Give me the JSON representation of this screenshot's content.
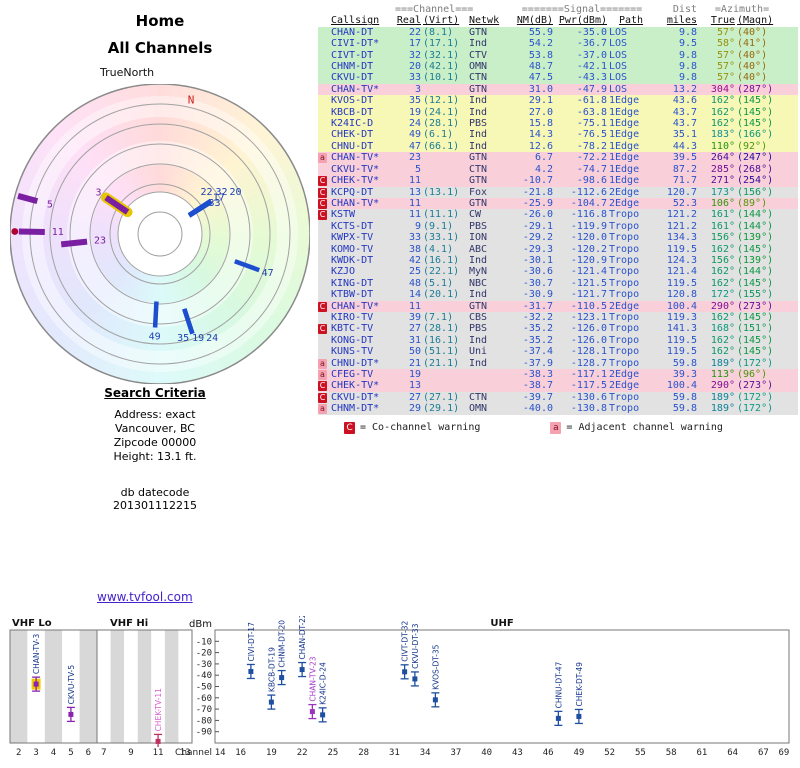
{
  "search": {
    "title": "Search Criteria",
    "lines": [
      "Address: exact",
      "Vancouver, BC",
      "Zipcode 00000",
      "Height: 13.1 ft."
    ],
    "lines2": [
      "db datecode",
      "201301112215"
    ]
  },
  "link": "www.tvfool.com",
  "legend": {
    "c_icon": "C",
    "c_text": "= Co-channel warning",
    "a_icon": "a",
    "a_text": "= Adjacent channel warning"
  },
  "table": {
    "group_headers": {
      "channel": "===Channel===",
      "signal": "=======Signal=======",
      "dist": "Dist",
      "azimuth": "=Azimuth="
    },
    "col_headers": [
      "Callsign",
      "Real",
      "(Virt)",
      "Netwk",
      "NM(dB)",
      "Pwr(dBm)",
      "Path",
      "miles",
      "True",
      "(Magn)"
    ],
    "band_colors": {
      "green": "#c9efc9",
      "yellow": "#f7f7b6",
      "pink": "#f9d0da",
      "gray": "#e2e2e2"
    },
    "rows": [
      {
        "callsign": "CHAN-DT",
        "real": "22",
        "virt": "(8.1)",
        "netwk": "GTN",
        "nm": "55.9",
        "pwr": "-35.0",
        "path": "LOS",
        "miles": "9.8",
        "az_true": 57,
        "az_magn": 40,
        "band": "green",
        "warn": ""
      },
      {
        "callsign": "CIVI-DT*",
        "real": "17",
        "virt": "(17.1)",
        "netwk": "Ind",
        "nm": "54.2",
        "pwr": "-36.7",
        "path": "LOS",
        "miles": "9.5",
        "az_true": 58,
        "az_magn": 41,
        "band": "green",
        "warn": ""
      },
      {
        "callsign": "CIVT-DT",
        "real": "32",
        "virt": "(32.1)",
        "netwk": "CTV",
        "nm": "53.8",
        "pwr": "-37.0",
        "path": "LOS",
        "miles": "9.8",
        "az_true": 57,
        "az_magn": 40,
        "band": "green",
        "warn": ""
      },
      {
        "callsign": "CHNM-DT",
        "real": "20",
        "virt": "(42.1)",
        "netwk": "OMN",
        "nm": "48.7",
        "pwr": "-42.1",
        "path": "LOS",
        "miles": "9.8",
        "az_true": 57,
        "az_magn": 40,
        "band": "green",
        "warn": ""
      },
      {
        "callsign": "CKVU-DT",
        "real": "33",
        "virt": "(10.1)",
        "netwk": "CTN",
        "nm": "47.5",
        "pwr": "-43.3",
        "path": "LOS",
        "miles": "9.8",
        "az_true": 57,
        "az_magn": 40,
        "band": "green",
        "warn": ""
      },
      {
        "callsign": "CHAN-TV*",
        "real": "3",
        "virt": "",
        "netwk": "GTN",
        "nm": "31.0",
        "pwr": "-47.9",
        "path": "LOS",
        "miles": "13.2",
        "az_true": 304,
        "az_magn": 287,
        "band": "pink",
        "warn": ""
      },
      {
        "callsign": "KVOS-DT",
        "real": "35",
        "virt": "(12.1)",
        "netwk": "Ind",
        "nm": "29.1",
        "pwr": "-61.8",
        "path": "1Edge",
        "miles": "43.6",
        "az_true": 162,
        "az_magn": 145,
        "band": "yellow",
        "warn": ""
      },
      {
        "callsign": "KBCB-DT",
        "real": "19",
        "virt": "(24.1)",
        "netwk": "Ind",
        "nm": "27.0",
        "pwr": "-63.8",
        "path": "1Edge",
        "miles": "43.7",
        "az_true": 162,
        "az_magn": 145,
        "band": "yellow",
        "warn": ""
      },
      {
        "callsign": "K24IC-D",
        "real": "24",
        "virt": "(28.1)",
        "netwk": "PBS",
        "nm": "15.8",
        "pwr": "-75.1",
        "path": "1Edge",
        "miles": "43.7",
        "az_true": 162,
        "az_magn": 145,
        "band": "yellow",
        "warn": ""
      },
      {
        "callsign": "CHEK-DT",
        "real": "49",
        "virt": "(6.1)",
        "netwk": "Ind",
        "nm": "14.3",
        "pwr": "-76.5",
        "path": "1Edge",
        "miles": "35.1",
        "az_true": 183,
        "az_magn": 166,
        "band": "yellow",
        "warn": ""
      },
      {
        "callsign": "CHNU-DT",
        "real": "47",
        "virt": "(66.1)",
        "netwk": "Ind",
        "nm": "12.6",
        "pwr": "-78.2",
        "path": "1Edge",
        "miles": "44.3",
        "az_true": 110,
        "az_magn": 92,
        "band": "yellow",
        "warn": ""
      },
      {
        "callsign": "CHAN-TV*",
        "real": "23",
        "virt": "",
        "netwk": "GTN",
        "nm": "6.7",
        "pwr": "-72.2",
        "path": "1Edge",
        "miles": "39.5",
        "az_true": 264,
        "az_magn": 247,
        "band": "pink",
        "warn": "a"
      },
      {
        "callsign": "CKVU-TV*",
        "real": "5",
        "virt": "",
        "netwk": "CTN",
        "nm": "4.2",
        "pwr": "-74.7",
        "path": "1Edge",
        "miles": "87.2",
        "az_true": 285,
        "az_magn": 268,
        "band": "pink",
        "warn": ""
      },
      {
        "callsign": "CHEK-TV*",
        "real": "11",
        "virt": "",
        "netwk": "GTN",
        "nm": "-10.7",
        "pwr": "-98.6",
        "path": "1Edge",
        "miles": "71.7",
        "az_true": 271,
        "az_magn": 254,
        "band": "pink",
        "warn": "C"
      },
      {
        "callsign": "KCPQ-DT",
        "real": "13",
        "virt": "(13.1)",
        "netwk": "Fox",
        "nm": "-21.8",
        "pwr": "-112.6",
        "path": "2Edge",
        "miles": "120.7",
        "az_true": 173,
        "az_magn": 156,
        "band": "gray",
        "warn": "C"
      },
      {
        "callsign": "CHAN-TV*",
        "real": "11",
        "virt": "",
        "netwk": "GTN",
        "nm": "-25.9",
        "pwr": "-104.7",
        "path": "2Edge",
        "miles": "52.3",
        "az_true": 106,
        "az_magn": 89,
        "band": "pink",
        "warn": "C"
      },
      {
        "callsign": "KSTW",
        "real": "11",
        "virt": "(11.1)",
        "netwk": "CW",
        "nm": "-26.0",
        "pwr": "-116.8",
        "path": "Tropo",
        "miles": "121.2",
        "az_true": 161,
        "az_magn": 144,
        "band": "gray",
        "warn": "C"
      },
      {
        "callsign": "KCTS-DT",
        "real": "9",
        "virt": "(9.1)",
        "netwk": "PBS",
        "nm": "-29.1",
        "pwr": "-119.9",
        "path": "Tropo",
        "miles": "121.2",
        "az_true": 161,
        "az_magn": 144,
        "band": "gray",
        "warn": ""
      },
      {
        "callsign": "KWPX-TV",
        "real": "33",
        "virt": "(33.1)",
        "netwk": "ION",
        "nm": "-29.2",
        "pwr": "-120.0",
        "path": "Tropo",
        "miles": "134.3",
        "az_true": 156,
        "az_magn": 139,
        "band": "gray",
        "warn": ""
      },
      {
        "callsign": "KOMO-TV",
        "real": "38",
        "virt": "(4.1)",
        "netwk": "ABC",
        "nm": "-29.3",
        "pwr": "-120.2",
        "path": "Tropo",
        "miles": "119.5",
        "az_true": 162,
        "az_magn": 145,
        "band": "gray",
        "warn": ""
      },
      {
        "callsign": "KWDK-DT",
        "real": "42",
        "virt": "(16.1)",
        "netwk": "Ind",
        "nm": "-30.1",
        "pwr": "-120.9",
        "path": "Tropo",
        "miles": "124.3",
        "az_true": 156,
        "az_magn": 139,
        "band": "gray",
        "warn": ""
      },
      {
        "callsign": "KZJO",
        "real": "25",
        "virt": "(22.1)",
        "netwk": "MyN",
        "nm": "-30.6",
        "pwr": "-121.4",
        "path": "Tropo",
        "miles": "121.4",
        "az_true": 162,
        "az_magn": 144,
        "band": "gray",
        "warn": ""
      },
      {
        "callsign": "KING-DT",
        "real": "48",
        "virt": "(5.1)",
        "netwk": "NBC",
        "nm": "-30.7",
        "pwr": "-121.5",
        "path": "Tropo",
        "miles": "119.5",
        "az_true": 162,
        "az_magn": 145,
        "band": "gray",
        "warn": ""
      },
      {
        "callsign": "KTBW-DT",
        "real": "14",
        "virt": "(20.1)",
        "netwk": "Ind",
        "nm": "-30.9",
        "pwr": "-121.7",
        "path": "Tropo",
        "miles": "120.8",
        "az_true": 172,
        "az_magn": 155,
        "band": "gray",
        "warn": ""
      },
      {
        "callsign": "CHAN-TV*",
        "real": "11",
        "virt": "",
        "netwk": "GTN",
        "nm": "-31.7",
        "pwr": "-110.5",
        "path": "2Edge",
        "miles": "100.4",
        "az_true": 290,
        "az_magn": 273,
        "band": "pink",
        "warn": "C"
      },
      {
        "callsign": "KIRO-TV",
        "real": "39",
        "virt": "(7.1)",
        "netwk": "CBS",
        "nm": "-32.2",
        "pwr": "-123.1",
        "path": "Tropo",
        "miles": "119.3",
        "az_true": 162,
        "az_magn": 145,
        "band": "gray",
        "warn": ""
      },
      {
        "callsign": "KBTC-TV",
        "real": "27",
        "virt": "(28.1)",
        "netwk": "PBS",
        "nm": "-35.2",
        "pwr": "-126.0",
        "path": "Tropo",
        "miles": "141.3",
        "az_true": 168,
        "az_magn": 151,
        "band": "gray",
        "warn": "C"
      },
      {
        "callsign": "KONG-DT",
        "real": "31",
        "virt": "(16.1)",
        "netwk": "Ind",
        "nm": "-35.2",
        "pwr": "-126.0",
        "path": "Tropo",
        "miles": "119.5",
        "az_true": 162,
        "az_magn": 145,
        "band": "gray",
        "warn": ""
      },
      {
        "callsign": "KUNS-TV",
        "real": "50",
        "virt": "(51.1)",
        "netwk": "Uni",
        "nm": "-37.4",
        "pwr": "-128.1",
        "path": "Tropo",
        "miles": "119.5",
        "az_true": 162,
        "az_magn": 145,
        "band": "gray",
        "warn": ""
      },
      {
        "callsign": "CHNU-DT*",
        "real": "21",
        "virt": "(21.1)",
        "netwk": "Ind",
        "nm": "-37.9",
        "pwr": "-128.7",
        "path": "Tropo",
        "miles": "59.8",
        "az_true": 189,
        "az_magn": 172,
        "band": "gray",
        "warn": "a"
      },
      {
        "callsign": "CFEG-TV",
        "real": "19",
        "virt": "",
        "netwk": "",
        "nm": "-38.3",
        "pwr": "-117.1",
        "path": "2Edge",
        "miles": "39.3",
        "az_true": 113,
        "az_magn": 96,
        "band": "pink",
        "warn": "a"
      },
      {
        "callsign": "CHEK-TV*",
        "real": "13",
        "virt": "",
        "netwk": "",
        "nm": "-38.7",
        "pwr": "-117.5",
        "path": "2Edge",
        "miles": "100.4",
        "az_true": 290,
        "az_magn": 273,
        "band": "pink",
        "warn": "C"
      },
      {
        "callsign": "CKVU-DT*",
        "real": "27",
        "virt": "(27.1)",
        "netwk": "CTN",
        "nm": "-39.7",
        "pwr": "-130.6",
        "path": "Tropo",
        "miles": "59.8",
        "az_true": 189,
        "az_magn": 172,
        "band": "gray",
        "warn": "C"
      },
      {
        "callsign": "CHNM-DT*",
        "real": "29",
        "virt": "(29.1)",
        "netwk": "OMN",
        "nm": "-40.0",
        "pwr": "-130.8",
        "path": "Tropo",
        "miles": "59.8",
        "az_true": 189,
        "az_magn": 172,
        "band": "gray",
        "warn": "a"
      }
    ]
  },
  "chart_data": [
    {
      "type": "scatter",
      "projection": "polar",
      "title": "Home",
      "subtitle": "All Channels",
      "north_label": "TrueNorth",
      "compass_marker": "N",
      "stations": [
        {
          "callsign": "CHAN-DT",
          "ch": "22",
          "az_true": 57,
          "miles": 9.8,
          "analog": false
        },
        {
          "callsign": "CIVI-DT",
          "ch": "17",
          "az_true": 58,
          "miles": 9.5,
          "analog": false
        },
        {
          "callsign": "CIVT-DT",
          "ch": "32",
          "az_true": 57,
          "miles": 9.8,
          "analog": false
        },
        {
          "callsign": "CHNM-DT",
          "ch": "20",
          "az_true": 57,
          "miles": 9.8,
          "analog": false
        },
        {
          "callsign": "CKVU-DT",
          "ch": "33",
          "az_true": 57,
          "miles": 9.8,
          "analog": false
        },
        {
          "callsign": "CHNU-DT",
          "ch": "47",
          "az_true": 110,
          "miles": 44.3,
          "analog": false
        },
        {
          "callsign": "KVOS-DT",
          "ch": "35",
          "az_true": 162,
          "miles": 43.6,
          "analog": false
        },
        {
          "callsign": "KBCB-DT",
          "ch": "19",
          "az_true": 162,
          "miles": 43.7,
          "analog": false
        },
        {
          "callsign": "K24IC-D",
          "ch": "24",
          "az_true": 162,
          "miles": 43.7,
          "analog": false
        },
        {
          "callsign": "CHEK-DT",
          "ch": "49",
          "az_true": 183,
          "miles": 35.1,
          "analog": false
        },
        {
          "callsign": "CHAN-TV",
          "ch": "23",
          "az_true": 264,
          "miles": 39.5,
          "analog": true
        },
        {
          "callsign": "CHEK-TV",
          "ch": "11",
          "az_true": 271,
          "miles": 71.7,
          "analog": true,
          "dot": true
        },
        {
          "callsign": "CKVU-TV",
          "ch": "5",
          "az_true": 285,
          "miles": 87.2,
          "analog": true
        },
        {
          "callsign": "CHAN-TV",
          "ch": "3",
          "az_true": 304,
          "miles": 13.2,
          "analog": true,
          "highlight": true
        }
      ]
    },
    {
      "type": "scatter",
      "ylabel": "dBm",
      "xlabel": "Channel",
      "band_labels": {
        "lo": "VHF Lo",
        "hi": "VHF Hi",
        "uhf": "UHF"
      },
      "yticks": [
        -10,
        -20,
        -30,
        -40,
        -50,
        -60,
        -70,
        -80,
        -90
      ],
      "ylim": [
        0,
        -100
      ],
      "lo_ticks": [
        2,
        3,
        4,
        5,
        6
      ],
      "hi_ticks": [
        7,
        9,
        11,
        13
      ],
      "uhf_ticks": [
        14,
        16,
        19,
        22,
        25,
        28,
        31,
        34,
        37,
        40,
        43,
        46,
        49,
        52,
        55,
        58,
        61,
        64,
        67,
        69
      ],
      "points": [
        {
          "label": "CHAN-TV-3",
          "ch": 3,
          "dbm": -47.9,
          "band": "lo",
          "style": "analog-hl"
        },
        {
          "label": "CKVU-TV-5",
          "ch": 5,
          "dbm": -74.7,
          "band": "lo",
          "style": "analog"
        },
        {
          "label": "CHEK-TV-11",
          "ch": 11,
          "dbm": -98.6,
          "band": "hi",
          "style": "analog-pink"
        },
        {
          "label": "CIVI-DT-17",
          "ch": 17,
          "dbm": -36.7,
          "band": "uhf",
          "style": "digital"
        },
        {
          "label": "KBCB-DT-19",
          "ch": 19,
          "dbm": -63.8,
          "band": "uhf",
          "style": "digital"
        },
        {
          "label": "CHNM-DT-20",
          "ch": 20,
          "dbm": -42.1,
          "band": "uhf",
          "style": "digital"
        },
        {
          "label": "CHAN-DT-22",
          "ch": 22,
          "dbm": -35.0,
          "band": "uhf",
          "style": "digital"
        },
        {
          "label": "CHAN-TV-23",
          "ch": 23,
          "dbm": -72.2,
          "band": "uhf",
          "style": "analog-purple"
        },
        {
          "label": "K24IC-D-24",
          "ch": 24,
          "dbm": -75.1,
          "band": "uhf",
          "style": "digital"
        },
        {
          "label": "CIVT-DT-32",
          "ch": 32,
          "dbm": -37.0,
          "band": "uhf",
          "style": "digital"
        },
        {
          "label": "CKVU-DT-33",
          "ch": 33,
          "dbm": -43.3,
          "band": "uhf",
          "style": "digital"
        },
        {
          "label": "KVOS-DT-35",
          "ch": 35,
          "dbm": -61.8,
          "band": "uhf",
          "style": "digital"
        },
        {
          "label": "CHNU-DT-47",
          "ch": 47,
          "dbm": -78.2,
          "band": "uhf",
          "style": "digital"
        },
        {
          "label": "CHEK-DT-49",
          "ch": 49,
          "dbm": -76.5,
          "band": "uhf",
          "style": "digital"
        }
      ]
    }
  ]
}
